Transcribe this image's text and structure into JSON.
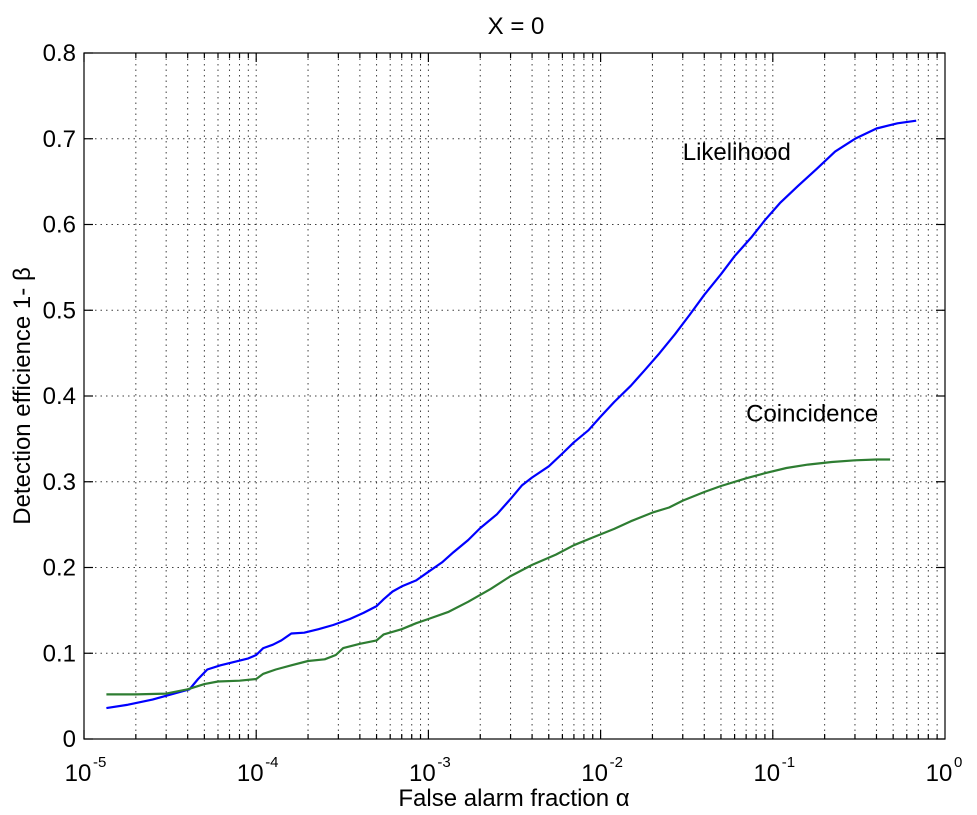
{
  "chart_data": {
    "type": "line",
    "title": "X = 0",
    "xlabel": "False alarm fraction α",
    "ylabel": "Detection efficience 1- β",
    "xscale": "log",
    "xlim": [
      1e-05,
      1
    ],
    "ylim": [
      0,
      0.8
    ],
    "grid": true,
    "x_ticks": [
      {
        "base": "10",
        "exp": "-5",
        "value": 1e-05
      },
      {
        "base": "10",
        "exp": "-4",
        "value": 0.0001
      },
      {
        "base": "10",
        "exp": "-3",
        "value": 0.001
      },
      {
        "base": "10",
        "exp": "-2",
        "value": 0.01
      },
      {
        "base": "10",
        "exp": "-1",
        "value": 0.1
      },
      {
        "base": "10",
        "exp": "0",
        "value": 1
      }
    ],
    "y_ticks": [
      "0",
      "0.1",
      "0.2",
      "0.3",
      "0.4",
      "0.5",
      "0.6",
      "0.7",
      "0.8"
    ],
    "annotations": [
      {
        "text": "Likelihood",
        "x": 0.03,
        "y": 0.675
      },
      {
        "text": "Coincidence",
        "x": 0.07,
        "y": 0.37
      }
    ],
    "series": [
      {
        "color": "#0000ff",
        "points": [
          [
            1.35e-05,
            0.036
          ],
          [
            1.8e-05,
            0.04
          ],
          [
            2.5e-05,
            0.046
          ],
          [
            3.2e-05,
            0.052
          ],
          [
            4.1e-05,
            0.058
          ],
          [
            4.6e-05,
            0.07
          ],
          [
            5.2e-05,
            0.081
          ],
          [
            6.2e-05,
            0.086
          ],
          [
            7.5e-05,
            0.09
          ],
          [
            9e-05,
            0.094
          ],
          [
            0.0001,
            0.098
          ],
          [
            0.00011,
            0.106
          ],
          [
            0.000125,
            0.11
          ],
          [
            0.00014,
            0.115
          ],
          [
            0.00016,
            0.123
          ],
          [
            0.00019,
            0.124
          ],
          [
            0.00023,
            0.128
          ],
          [
            0.00028,
            0.133
          ],
          [
            0.00035,
            0.14
          ],
          [
            0.00042,
            0.147
          ],
          [
            0.0005,
            0.155
          ],
          [
            0.00055,
            0.163
          ],
          [
            0.00062,
            0.172
          ],
          [
            0.0007,
            0.178
          ],
          [
            0.00085,
            0.185
          ],
          [
            0.001,
            0.195
          ],
          [
            0.0012,
            0.206
          ],
          [
            0.0014,
            0.218
          ],
          [
            0.0017,
            0.232
          ],
          [
            0.002,
            0.246
          ],
          [
            0.0025,
            0.262
          ],
          [
            0.003,
            0.28
          ],
          [
            0.0035,
            0.296
          ],
          [
            0.004,
            0.305
          ],
          [
            0.005,
            0.318
          ],
          [
            0.006,
            0.333
          ],
          [
            0.007,
            0.346
          ],
          [
            0.0085,
            0.36
          ],
          [
            0.01,
            0.376
          ],
          [
            0.012,
            0.393
          ],
          [
            0.015,
            0.412
          ],
          [
            0.018,
            0.43
          ],
          [
            0.022,
            0.45
          ],
          [
            0.027,
            0.472
          ],
          [
            0.033,
            0.495
          ],
          [
            0.04,
            0.518
          ],
          [
            0.05,
            0.542
          ],
          [
            0.06,
            0.563
          ],
          [
            0.075,
            0.585
          ],
          [
            0.09,
            0.605
          ],
          [
            0.11,
            0.625
          ],
          [
            0.14,
            0.645
          ],
          [
            0.18,
            0.665
          ],
          [
            0.23,
            0.685
          ],
          [
            0.3,
            0.7
          ],
          [
            0.4,
            0.712
          ],
          [
            0.53,
            0.718
          ],
          [
            0.68,
            0.721
          ]
        ]
      },
      {
        "color": "#2e7d32",
        "points": [
          [
            1.35e-05,
            0.052
          ],
          [
            2e-05,
            0.052
          ],
          [
            3e-05,
            0.053
          ],
          [
            4e-05,
            0.058
          ],
          [
            5e-05,
            0.064
          ],
          [
            6e-05,
            0.067
          ],
          [
            8e-05,
            0.068
          ],
          [
            0.0001,
            0.07
          ],
          [
            0.00011,
            0.076
          ],
          [
            0.00013,
            0.081
          ],
          [
            0.00016,
            0.086
          ],
          [
            0.0002,
            0.091
          ],
          [
            0.00025,
            0.093
          ],
          [
            0.00029,
            0.098
          ],
          [
            0.00032,
            0.106
          ],
          [
            0.0004,
            0.111
          ],
          [
            0.0005,
            0.115
          ],
          [
            0.00055,
            0.122
          ],
          [
            0.0007,
            0.128
          ],
          [
            0.00085,
            0.135
          ],
          [
            0.001,
            0.14
          ],
          [
            0.0013,
            0.148
          ],
          [
            0.0017,
            0.16
          ],
          [
            0.0023,
            0.175
          ],
          [
            0.003,
            0.19
          ],
          [
            0.004,
            0.203
          ],
          [
            0.0055,
            0.215
          ],
          [
            0.007,
            0.226
          ],
          [
            0.009,
            0.235
          ],
          [
            0.012,
            0.245
          ],
          [
            0.015,
            0.254
          ],
          [
            0.02,
            0.264
          ],
          [
            0.025,
            0.27
          ],
          [
            0.03,
            0.278
          ],
          [
            0.04,
            0.288
          ],
          [
            0.05,
            0.295
          ],
          [
            0.07,
            0.304
          ],
          [
            0.09,
            0.31
          ],
          [
            0.12,
            0.316
          ],
          [
            0.16,
            0.32
          ],
          [
            0.22,
            0.323
          ],
          [
            0.3,
            0.325
          ],
          [
            0.4,
            0.326
          ],
          [
            0.48,
            0.326
          ]
        ]
      }
    ]
  }
}
